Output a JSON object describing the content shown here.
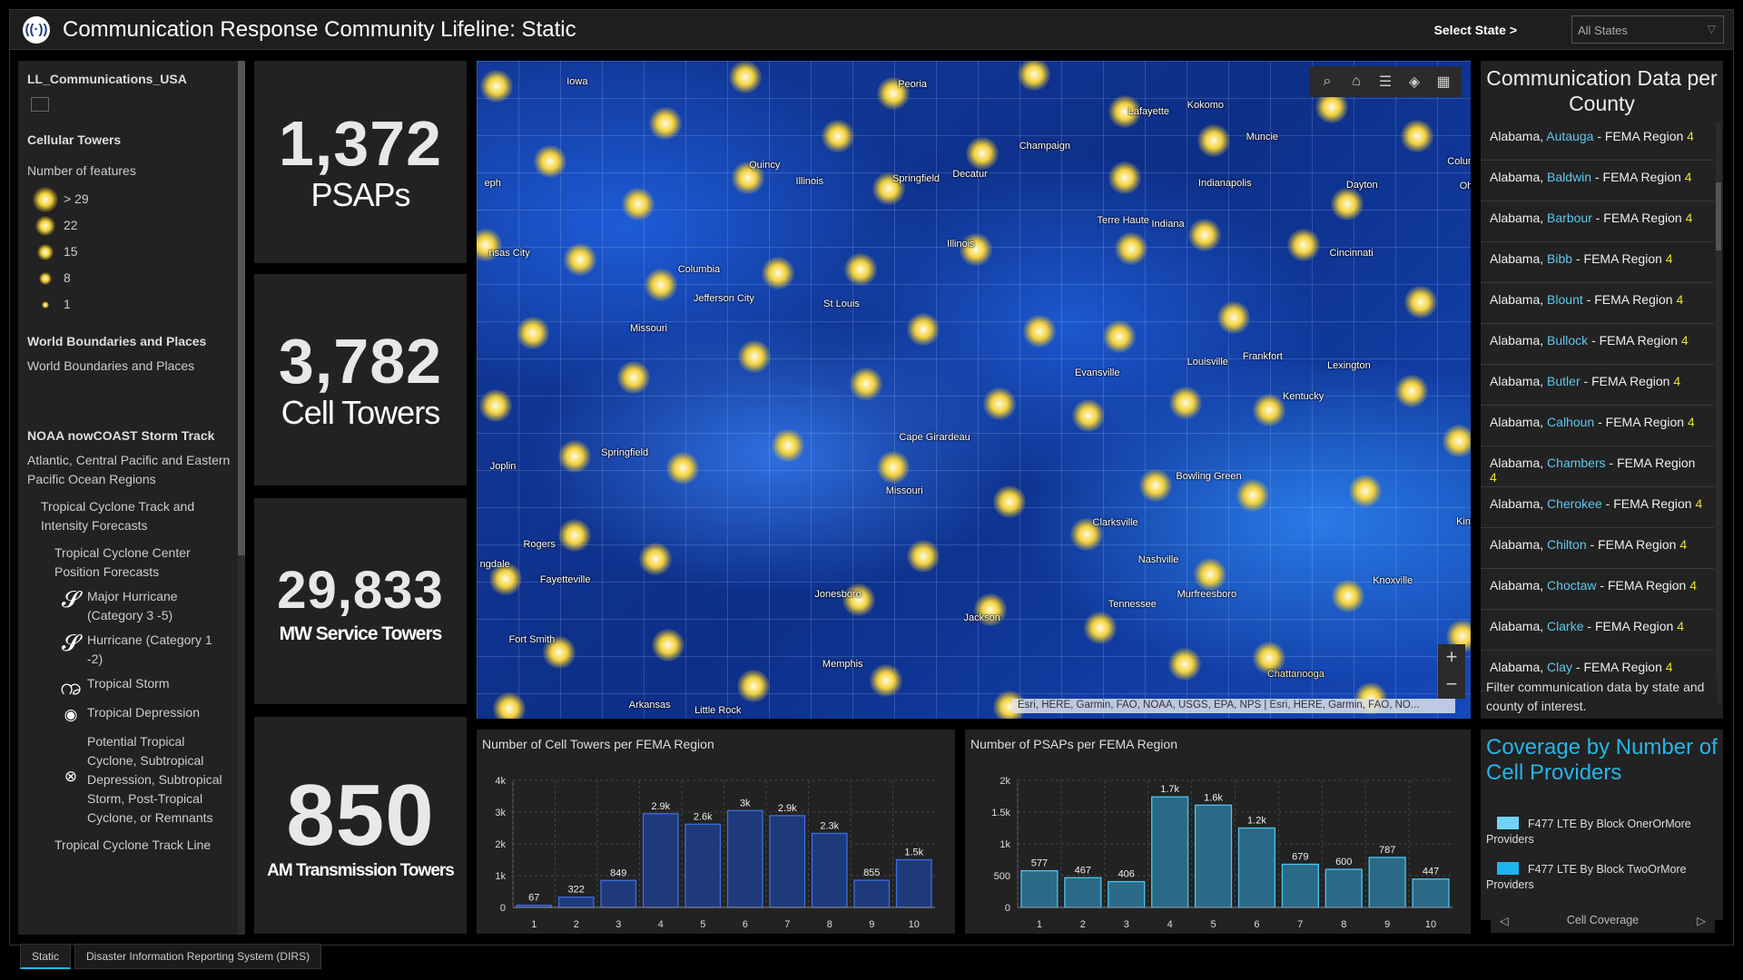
{
  "header": {
    "title": "Communication Response Community Lifeline: Static",
    "logo_icon": "radio-tower-icon",
    "state_label": "Select State >",
    "state_value": "All States"
  },
  "left": {
    "layer": "LL_Communications_USA",
    "cellular_title": "Cellular Towers",
    "count_label": "Number of features",
    "legend": [
      ">  29",
      "22",
      "15",
      "8",
      "1"
    ],
    "world_title": "World Boundaries and Places",
    "world_item": "World Boundaries and Places",
    "noaa_title": "NOAA nowCOAST Storm Track",
    "noaa_regions": "Atlantic, Central Pacific and Eastern Pacific Ocean Regions",
    "track_forecast": "Tropical Cyclone Track and Intensity Forecasts",
    "center_forecast": "Tropical Cyclone Center Position Forecasts",
    "storms": [
      {
        "icon": "major-hurricane-icon",
        "label": "Major Hurricane (Category 3 -5)"
      },
      {
        "icon": "hurricane-icon",
        "label": "Hurricane (Category 1 -2)"
      },
      {
        "icon": "tropical-storm-icon",
        "label": "Tropical Storm"
      },
      {
        "icon": "tropical-depression-icon",
        "label": "Tropical Depression"
      },
      {
        "icon": "post-tropical-icon",
        "label": "Potential Tropical Cyclone, Subtropical Depression, Subtropical Storm, Post-Tropical Cyclone, or Remnants"
      }
    ],
    "track_line": "Tropical Cyclone Track Line"
  },
  "stats": [
    {
      "value": "1,372",
      "label": "PSAPs"
    },
    {
      "value": "3,782",
      "label": "Cell Towers"
    },
    {
      "value": "29,833",
      "label": "MW Service Towers"
    },
    {
      "value": "850",
      "label": "AM Transmission Towers"
    }
  ],
  "map": {
    "cities": [
      "Iowa",
      "Peoria",
      "Lafayette",
      "Kokomo",
      "Muncie",
      "Quincy",
      "Illinois",
      "Springfield",
      "Decatur",
      "Champaign",
      "Indianapolis",
      "Dayton",
      "Columbu",
      "Ohi",
      "eph",
      "nsas City",
      "Terre Haute",
      "Indiana",
      "Illinois",
      "Cincinnati",
      "Columbia",
      "Jefferson City",
      "St Louis",
      "Missouri",
      "Frankfort",
      "Louisville",
      "Lexington",
      "Evansville",
      "Kentucky",
      "Cape Girardeau",
      "Missouri",
      "Springfield",
      "Joplin",
      "Bowling Green",
      "Clarksville",
      "Kingsp",
      "Rogers",
      "ngdale",
      "Fayetteville",
      "Nashville",
      "Knoxville",
      "Jonesboro",
      "Murfreesboro",
      "Tennessee",
      "Jackson",
      "Fort Smith",
      "Memphis",
      "Chattanooga",
      "Arkansas",
      "Little Rock"
    ],
    "attribution": "Esri, HERE, Garmin, FAO, NOAA, USGS, EPA, NPS | Esri, HERE, Garmin, FAO, NO...",
    "tools": [
      "search-icon",
      "home-icon",
      "legend-list-icon",
      "layers-icon",
      "basemap-gallery-icon"
    ],
    "zoom_in": "+",
    "zoom_out": "−"
  },
  "right": {
    "title": "Communication Data per County",
    "items": [
      {
        "state": "Alabama,",
        "county": "Autauga",
        "region": "- FEMA Region",
        "num": "4"
      },
      {
        "state": "Alabama,",
        "county": "Baldwin",
        "region": "- FEMA Region",
        "num": "4"
      },
      {
        "state": "Alabama,",
        "county": "Barbour",
        "region": "- FEMA Region",
        "num": "4"
      },
      {
        "state": "Alabama,",
        "county": "Bibb",
        "region": "- FEMA Region",
        "num": "4"
      },
      {
        "state": "Alabama,",
        "county": "Blount",
        "region": "- FEMA Region",
        "num": "4"
      },
      {
        "state": "Alabama,",
        "county": "Bullock",
        "region": "- FEMA Region",
        "num": "4"
      },
      {
        "state": "Alabama,",
        "county": "Butler",
        "region": "- FEMA Region",
        "num": "4"
      },
      {
        "state": "Alabama,",
        "county": "Calhoun",
        "region": "- FEMA Region",
        "num": "4"
      },
      {
        "state": "Alabama,",
        "county": "Chambers",
        "region": "- FEMA Region",
        "num": "4"
      },
      {
        "state": "Alabama,",
        "county": "Cherokee",
        "region": "- FEMA Region",
        "num": "4"
      },
      {
        "state": "Alabama,",
        "county": "Chilton",
        "region": "- FEMA Region",
        "num": "4"
      },
      {
        "state": "Alabama,",
        "county": "Choctaw",
        "region": "- FEMA Region",
        "num": "4"
      },
      {
        "state": "Alabama,",
        "county": "Clarke",
        "region": "- FEMA Region",
        "num": "4"
      },
      {
        "state": "Alabama,",
        "county": "Clay",
        "region": "- FEMA Region",
        "num": "4"
      }
    ],
    "footer": "Filter communication data by state and county of interest."
  },
  "coverage": {
    "title": "Coverage by Number of Cell Providers",
    "items": [
      {
        "label": "F477 LTE By Block OnerOrMore Providers",
        "color": "#6fd4f8"
      },
      {
        "label": "F477 LTE By Block TwoOrMore Providers",
        "color": "#1eb4f0"
      }
    ],
    "nav_label": "Cell Coverage"
  },
  "tabs": [
    "Static",
    "Disaster Information Reporting System (DIRS)"
  ],
  "colors": {
    "accent": "#27b4e8",
    "county": "#5ec8ec",
    "region_num": "#e8e030",
    "towers_bar": "#1f3a7a",
    "psap_bar": "#2a6a86"
  },
  "chart_data": [
    {
      "type": "bar",
      "title": "Number of Cell Towers per FEMA Region",
      "categories": [
        "1",
        "2",
        "3",
        "4",
        "5",
        "6",
        "7",
        "8",
        "9",
        "10"
      ],
      "values": [
        67,
        322,
        849,
        2950,
        2620,
        3050,
        2890,
        2330,
        855,
        1500
      ],
      "labels": [
        "67",
        "322",
        "849",
        "2.9k",
        "2.6k",
        "3k",
        "2.9k",
        "2.3k",
        "855",
        "1.5k"
      ],
      "ylim": [
        0,
        4000
      ],
      "yticks": [
        0,
        1000,
        2000,
        3000,
        4000
      ],
      "ytick_labels": [
        "0",
        "1k",
        "2k",
        "3k",
        "4k"
      ],
      "grid": true,
      "color": "#1f3a7a",
      "edge": "#3d6ee0"
    },
    {
      "type": "bar",
      "title": "Number of PSAPs per FEMA Region",
      "categories": [
        "1",
        "2",
        "3",
        "4",
        "5",
        "6",
        "7",
        "8",
        "9",
        "10"
      ],
      "values": [
        577,
        467,
        406,
        1740,
        1610,
        1250,
        679,
        600,
        787,
        447
      ],
      "labels": [
        "577",
        "467",
        "406",
        "1.7k",
        "1.6k",
        "1.2k",
        "679",
        "600",
        "787",
        "447"
      ],
      "ylim": [
        0,
        2000
      ],
      "yticks": [
        0,
        500,
        1000,
        1500,
        2000
      ],
      "ytick_labels": [
        "0",
        "500",
        "1k",
        "1.5k",
        "2k"
      ],
      "grid": true,
      "color": "#2a6a86",
      "edge": "#4cc6f0"
    }
  ]
}
